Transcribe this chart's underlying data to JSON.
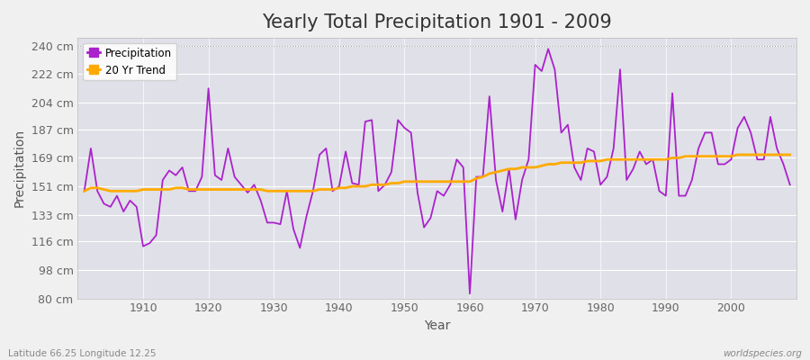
{
  "title": "Yearly Total Precipitation 1901 - 2009",
  "xlabel": "Year",
  "ylabel": "Precipitation",
  "subtitle_left": "Latitude 66.25 Longitude 12.25",
  "subtitle_right": "worldspecies.org",
  "years": [
    1901,
    1902,
    1903,
    1904,
    1905,
    1906,
    1907,
    1908,
    1909,
    1910,
    1911,
    1912,
    1913,
    1914,
    1915,
    1916,
    1917,
    1918,
    1919,
    1920,
    1921,
    1922,
    1923,
    1924,
    1925,
    1926,
    1927,
    1928,
    1929,
    1930,
    1931,
    1932,
    1933,
    1934,
    1935,
    1936,
    1937,
    1938,
    1939,
    1940,
    1941,
    1942,
    1943,
    1944,
    1945,
    1946,
    1947,
    1948,
    1949,
    1950,
    1951,
    1952,
    1953,
    1954,
    1955,
    1956,
    1957,
    1958,
    1959,
    1960,
    1961,
    1962,
    1963,
    1964,
    1965,
    1966,
    1967,
    1968,
    1969,
    1970,
    1971,
    1972,
    1973,
    1974,
    1975,
    1976,
    1977,
    1978,
    1979,
    1980,
    1981,
    1982,
    1983,
    1984,
    1985,
    1986,
    1987,
    1988,
    1989,
    1990,
    1991,
    1992,
    1993,
    1994,
    1995,
    1996,
    1997,
    1998,
    1999,
    2000,
    2001,
    2002,
    2003,
    2004,
    2005,
    2006,
    2007,
    2008,
    2009
  ],
  "precipitation": [
    148,
    175,
    148,
    140,
    138,
    145,
    135,
    142,
    138,
    113,
    115,
    120,
    155,
    161,
    158,
    163,
    148,
    148,
    157,
    213,
    158,
    155,
    175,
    157,
    152,
    147,
    152,
    142,
    128,
    128,
    127,
    148,
    124,
    112,
    132,
    148,
    171,
    175,
    148,
    151,
    173,
    153,
    152,
    192,
    193,
    148,
    152,
    160,
    193,
    188,
    185,
    147,
    125,
    131,
    148,
    145,
    152,
    168,
    163,
    83,
    157,
    157,
    208,
    155,
    135,
    162,
    130,
    155,
    168,
    228,
    224,
    238,
    225,
    185,
    190,
    163,
    155,
    175,
    173,
    152,
    157,
    175,
    225,
    155,
    162,
    173,
    165,
    168,
    148,
    145,
    210,
    145,
    145,
    155,
    175,
    185,
    185,
    165,
    165,
    168,
    188,
    195,
    185,
    168,
    168,
    195,
    175,
    165,
    152
  ],
  "trend": [
    148,
    150,
    150,
    149,
    148,
    148,
    148,
    148,
    148,
    149,
    149,
    149,
    149,
    149,
    150,
    150,
    149,
    149,
    149,
    149,
    149,
    149,
    149,
    149,
    149,
    149,
    149,
    149,
    148,
    148,
    148,
    148,
    148,
    148,
    148,
    148,
    149,
    149,
    149,
    150,
    150,
    151,
    151,
    151,
    152,
    152,
    152,
    153,
    153,
    154,
    154,
    154,
    154,
    154,
    154,
    154,
    154,
    154,
    154,
    154,
    156,
    157,
    159,
    160,
    161,
    162,
    162,
    163,
    163,
    163,
    164,
    165,
    165,
    166,
    166,
    166,
    166,
    167,
    167,
    167,
    168,
    168,
    168,
    168,
    168,
    168,
    168,
    168,
    168,
    168,
    169,
    169,
    170,
    170,
    170,
    170,
    170,
    170,
    170,
    170,
    171,
    171,
    171,
    171,
    171,
    171,
    171,
    171,
    171
  ],
  "precip_color": "#aa22cc",
  "trend_color": "#ffaa00",
  "bg_color": "#f0f0f0",
  "plot_bg_color": "#e0e0e8",
  "grid_color": "#cccccc",
  "grid_color_light": "#d8d8d8",
  "ylim": [
    80,
    245
  ],
  "yticks": [
    80,
    98,
    116,
    133,
    151,
    169,
    187,
    204,
    222,
    240
  ],
  "ytick_labels": [
    "80 cm",
    "98 cm",
    "116 cm",
    "133 cm",
    "151 cm",
    "169 cm",
    "187 cm",
    "204 cm",
    "222 cm",
    "240 cm"
  ],
  "xticks": [
    1910,
    1920,
    1930,
    1940,
    1950,
    1960,
    1970,
    1980,
    1990,
    2000
  ],
  "xlim": [
    1900,
    2010
  ],
  "title_fontsize": 15,
  "axis_label_fontsize": 10,
  "tick_fontsize": 9,
  "legend_labels": [
    "Precipitation",
    "20 Yr Trend"
  ]
}
